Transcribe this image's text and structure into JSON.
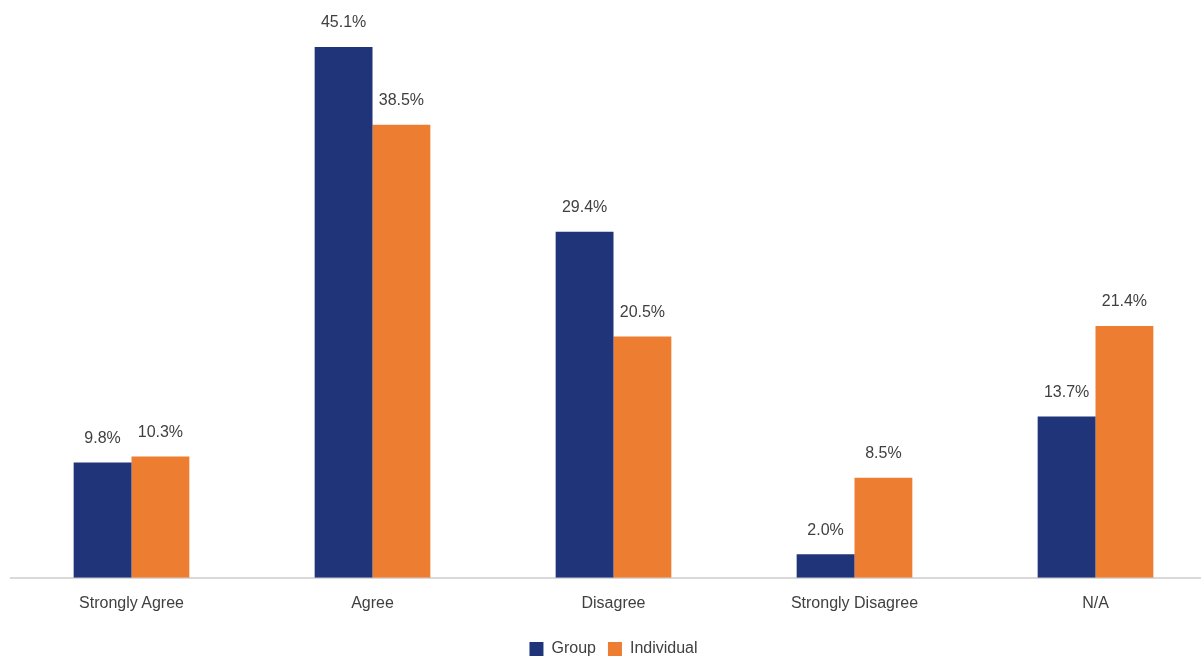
{
  "chart_data": {
    "type": "bar",
    "categories": [
      "Strongly Agree",
      "Agree",
      "Disagree",
      "Strongly Disagree",
      "N/A"
    ],
    "series": [
      {
        "name": "Group",
        "color": "#1f3479",
        "values": [
          9.8,
          45.1,
          29.4,
          2.0,
          13.7
        ],
        "value_labels": [
          "9.8%",
          "45.1%",
          "29.4%",
          "2.0%",
          "13.7%"
        ]
      },
      {
        "name": "Individual",
        "color": "#ed7d31",
        "values": [
          10.3,
          38.5,
          20.5,
          8.5,
          21.4
        ],
        "value_labels": [
          "10.3%",
          "38.5%",
          "20.5%",
          "8.5%",
          "21.4%"
        ]
      }
    ],
    "legend": "bottom",
    "grid": false
  }
}
